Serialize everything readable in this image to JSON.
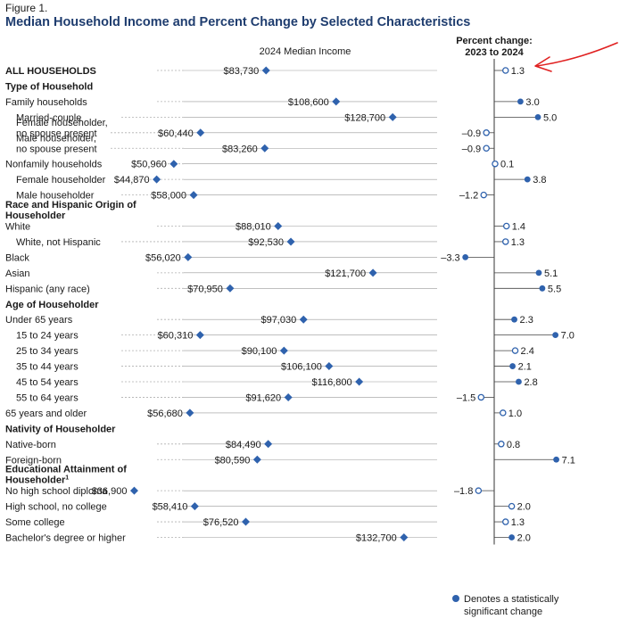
{
  "figure_label": "Figure 1.",
  "title": "Median Household Income and Percent Change by Selected Characteristics",
  "colors": {
    "title": "#1f3d6f",
    "marker": "#2f62ad",
    "guide": "#999999",
    "annotation": "#e02020"
  },
  "chart_data": {
    "type": "dot",
    "income_header": "2024 Median Income",
    "pct_header": [
      "Percent change:",
      "2023 to 2024"
    ],
    "income_xlim": [
      0,
      155000
    ],
    "pct_xlim": [
      -4,
      8
    ],
    "rows": [
      {
        "kind": "total",
        "label": "ALL HOUSEHOLDS",
        "income": 83730,
        "income_label": "$83,730",
        "pct": 1.3,
        "pct_label": "1.3",
        "significant": false
      },
      {
        "kind": "category",
        "label": "Type of Household"
      },
      {
        "kind": "item",
        "label": "Family households",
        "income": 108600,
        "income_label": "$108,600",
        "pct": 3.0,
        "pct_label": "3.0",
        "significant": true
      },
      {
        "kind": "item",
        "indent": true,
        "label": "Married-couple",
        "income": 128700,
        "income_label": "$128,700",
        "pct": 5.0,
        "pct_label": "5.0",
        "significant": true
      },
      {
        "kind": "item",
        "indent": true,
        "label": "Female householder,",
        "label2": "no spouse present",
        "income": 60440,
        "income_label": "$60,440",
        "pct": -0.9,
        "pct_label": "–0.9",
        "significant": false
      },
      {
        "kind": "item",
        "indent": true,
        "label": "Male householder,",
        "label2": "no spouse present",
        "income": 83260,
        "income_label": "$83,260",
        "pct": -0.9,
        "pct_label": "–0.9",
        "significant": false
      },
      {
        "kind": "item",
        "label": "Nonfamily households",
        "income": 50960,
        "income_label": "$50,960",
        "pct": 0.1,
        "pct_label": "0.1",
        "significant": false
      },
      {
        "kind": "item",
        "indent": true,
        "label": "Female householder",
        "income": 44870,
        "income_label": "$44,870",
        "pct": 3.8,
        "pct_label": "3.8",
        "significant": true
      },
      {
        "kind": "item",
        "indent": true,
        "label": "Male householder",
        "income": 58000,
        "income_label": "$58,000",
        "pct": -1.2,
        "pct_label": "–1.2",
        "significant": false
      },
      {
        "kind": "category",
        "label": "Race and Hispanic Origin of",
        "label2": "Householder"
      },
      {
        "kind": "item",
        "label": "White",
        "income": 88010,
        "income_label": "$88,010",
        "pct": 1.4,
        "pct_label": "1.4",
        "significant": false
      },
      {
        "kind": "item",
        "indent": true,
        "label": "White, not Hispanic",
        "income": 92530,
        "income_label": "$92,530",
        "pct": 1.3,
        "pct_label": "1.3",
        "significant": false
      },
      {
        "kind": "item",
        "label": "Black",
        "income": 56020,
        "income_label": "$56,020",
        "pct": -3.3,
        "pct_label": "–3.3",
        "significant": true
      },
      {
        "kind": "item",
        "label": "Asian",
        "income": 121700,
        "income_label": "$121,700",
        "pct": 5.1,
        "pct_label": "5.1",
        "significant": true
      },
      {
        "kind": "item",
        "label": "Hispanic (any race)",
        "income": 70950,
        "income_label": "$70,950",
        "pct": 5.5,
        "pct_label": "5.5",
        "significant": true
      },
      {
        "kind": "category",
        "label": "Age of Householder"
      },
      {
        "kind": "item",
        "label": "Under 65 years",
        "income": 97030,
        "income_label": "$97,030",
        "pct": 2.3,
        "pct_label": "2.3",
        "significant": true
      },
      {
        "kind": "item",
        "indent": true,
        "label": "15 to 24 years",
        "income": 60310,
        "income_label": "$60,310",
        "pct": 7.0,
        "pct_label": "7.0",
        "significant": true
      },
      {
        "kind": "item",
        "indent": true,
        "label": "25 to 34 years",
        "income": 90100,
        "income_label": "$90,100",
        "pct": 2.4,
        "pct_label": "2.4",
        "significant": false
      },
      {
        "kind": "item",
        "indent": true,
        "label": "35 to 44 years",
        "income": 106100,
        "income_label": "$106,100",
        "pct": 2.1,
        "pct_label": "2.1",
        "significant": true
      },
      {
        "kind": "item",
        "indent": true,
        "label": "45 to 54 years",
        "income": 116800,
        "income_label": "$116,800",
        "pct": 2.8,
        "pct_label": "2.8",
        "significant": true
      },
      {
        "kind": "item",
        "indent": true,
        "label": "55 to 64 years",
        "income": 91620,
        "income_label": "$91,620",
        "pct": -1.5,
        "pct_label": "–1.5",
        "significant": false
      },
      {
        "kind": "item",
        "label": "65 years and older",
        "income": 56680,
        "income_label": "$56,680",
        "pct": 1.0,
        "pct_label": "1.0",
        "significant": false
      },
      {
        "kind": "category",
        "label": "Nativity of Householder"
      },
      {
        "kind": "item",
        "label": "Native-born",
        "income": 84490,
        "income_label": "$84,490",
        "pct": 0.8,
        "pct_label": "0.8",
        "significant": false
      },
      {
        "kind": "item",
        "label": "Foreign-born",
        "income": 80590,
        "income_label": "$80,590",
        "pct": 7.1,
        "pct_label": "7.1",
        "significant": true
      },
      {
        "kind": "category",
        "label": "Educational Attainment of",
        "label2": "Householder",
        "sup": "1"
      },
      {
        "kind": "item",
        "label": "No high school diploma",
        "income": 36900,
        "income_label": "$36,900",
        "pct": -1.8,
        "pct_label": "–1.8",
        "significant": false
      },
      {
        "kind": "item",
        "label": "High school, no college",
        "income": 58410,
        "income_label": "$58,410",
        "pct": 2.0,
        "pct_label": "2.0",
        "significant": false
      },
      {
        "kind": "item",
        "label": "Some college",
        "income": 76520,
        "income_label": "$76,520",
        "pct": 1.3,
        "pct_label": "1.3",
        "significant": false
      },
      {
        "kind": "item",
        "label": "Bachelor's degree or higher",
        "income": 132700,
        "income_label": "$132,700",
        "pct": 2.0,
        "pct_label": "2.0",
        "significant": true
      }
    ],
    "legend": [
      "Denotes a statistically",
      "significant change"
    ]
  }
}
